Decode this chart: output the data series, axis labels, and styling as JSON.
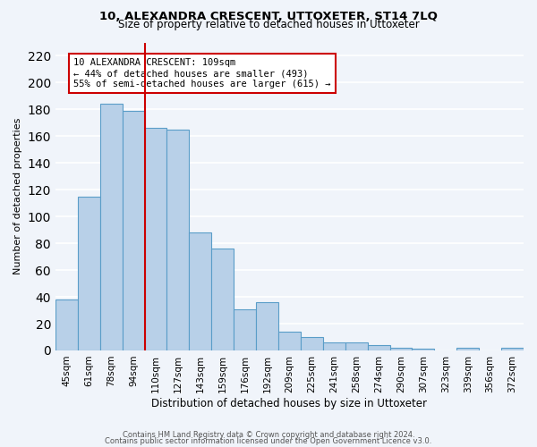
{
  "title": "10, ALEXANDRA CRESCENT, UTTOXETER, ST14 7LQ",
  "subtitle": "Size of property relative to detached houses in Uttoxeter",
  "xlabel": "Distribution of detached houses by size in Uttoxeter",
  "ylabel": "Number of detached properties",
  "bar_labels": [
    "45sqm",
    "61sqm",
    "78sqm",
    "94sqm",
    "110sqm",
    "127sqm",
    "143sqm",
    "159sqm",
    "176sqm",
    "192sqm",
    "209sqm",
    "225sqm",
    "241sqm",
    "258sqm",
    "274sqm",
    "290sqm",
    "307sqm",
    "323sqm",
    "339sqm",
    "356sqm",
    "372sqm"
  ],
  "bar_values": [
    38,
    115,
    184,
    179,
    166,
    165,
    88,
    76,
    31,
    36,
    14,
    10,
    6,
    6,
    4,
    2,
    1,
    0,
    2,
    0,
    2
  ],
  "bar_color": "#b8d0e8",
  "bar_edge_color": "#5a9dc8",
  "vline_color": "#cc0000",
  "vline_index": 4,
  "annotation_text": "10 ALEXANDRA CRESCENT: 109sqm\n← 44% of detached houses are smaller (493)\n55% of semi-detached houses are larger (615) →",
  "annotation_box_color": "#ffffff",
  "annotation_box_edge": "#cc0000",
  "ylim": [
    0,
    230
  ],
  "yticks": [
    0,
    20,
    40,
    60,
    80,
    100,
    120,
    140,
    160,
    180,
    200,
    220
  ],
  "footer1": "Contains HM Land Registry data © Crown copyright and database right 2024.",
  "footer2": "Contains public sector information licensed under the Open Government Licence v3.0.",
  "bg_color": "#f0f4fa",
  "grid_color": "#ffffff"
}
